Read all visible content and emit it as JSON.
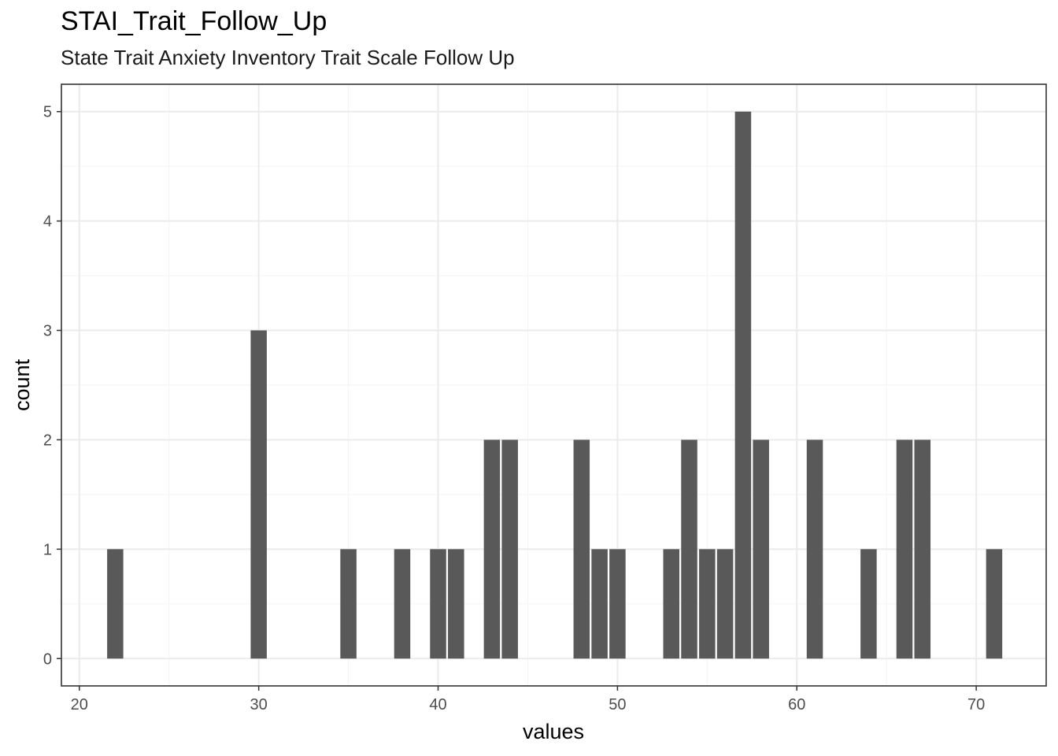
{
  "chart_data": {
    "type": "bar",
    "title": "STAI_Trait_Follow_Up",
    "subtitle": "State Trait Anxiety Inventory Trait Scale Follow Up",
    "xlabel": "values",
    "ylabel": "count",
    "xlim": [
      19,
      73.9
    ],
    "ylim": [
      -0.25,
      5.25
    ],
    "x_ticks": [
      20,
      30,
      40,
      50,
      60,
      70
    ],
    "y_ticks": [
      0,
      1,
      2,
      3,
      4,
      5
    ],
    "bar_width": 0.9,
    "grid": true,
    "bars": [
      {
        "x": 22,
        "count": 1
      },
      {
        "x": 30,
        "count": 3
      },
      {
        "x": 35,
        "count": 1
      },
      {
        "x": 38,
        "count": 1
      },
      {
        "x": 40,
        "count": 1
      },
      {
        "x": 41,
        "count": 1
      },
      {
        "x": 43,
        "count": 2
      },
      {
        "x": 44,
        "count": 2
      },
      {
        "x": 48,
        "count": 2
      },
      {
        "x": 49,
        "count": 1
      },
      {
        "x": 50,
        "count": 1
      },
      {
        "x": 53,
        "count": 1
      },
      {
        "x": 54,
        "count": 2
      },
      {
        "x": 55,
        "count": 1
      },
      {
        "x": 56,
        "count": 1
      },
      {
        "x": 57,
        "count": 5
      },
      {
        "x": 58,
        "count": 2
      },
      {
        "x": 61,
        "count": 2
      },
      {
        "x": 64,
        "count": 1
      },
      {
        "x": 66,
        "count": 2
      },
      {
        "x": 67,
        "count": 2
      },
      {
        "x": 71,
        "count": 1
      }
    ],
    "colors": {
      "bar": "#595959",
      "panel_border": "#333333",
      "grid_major": "#ebebeb",
      "grid_minor": "#f5f5f5"
    }
  }
}
